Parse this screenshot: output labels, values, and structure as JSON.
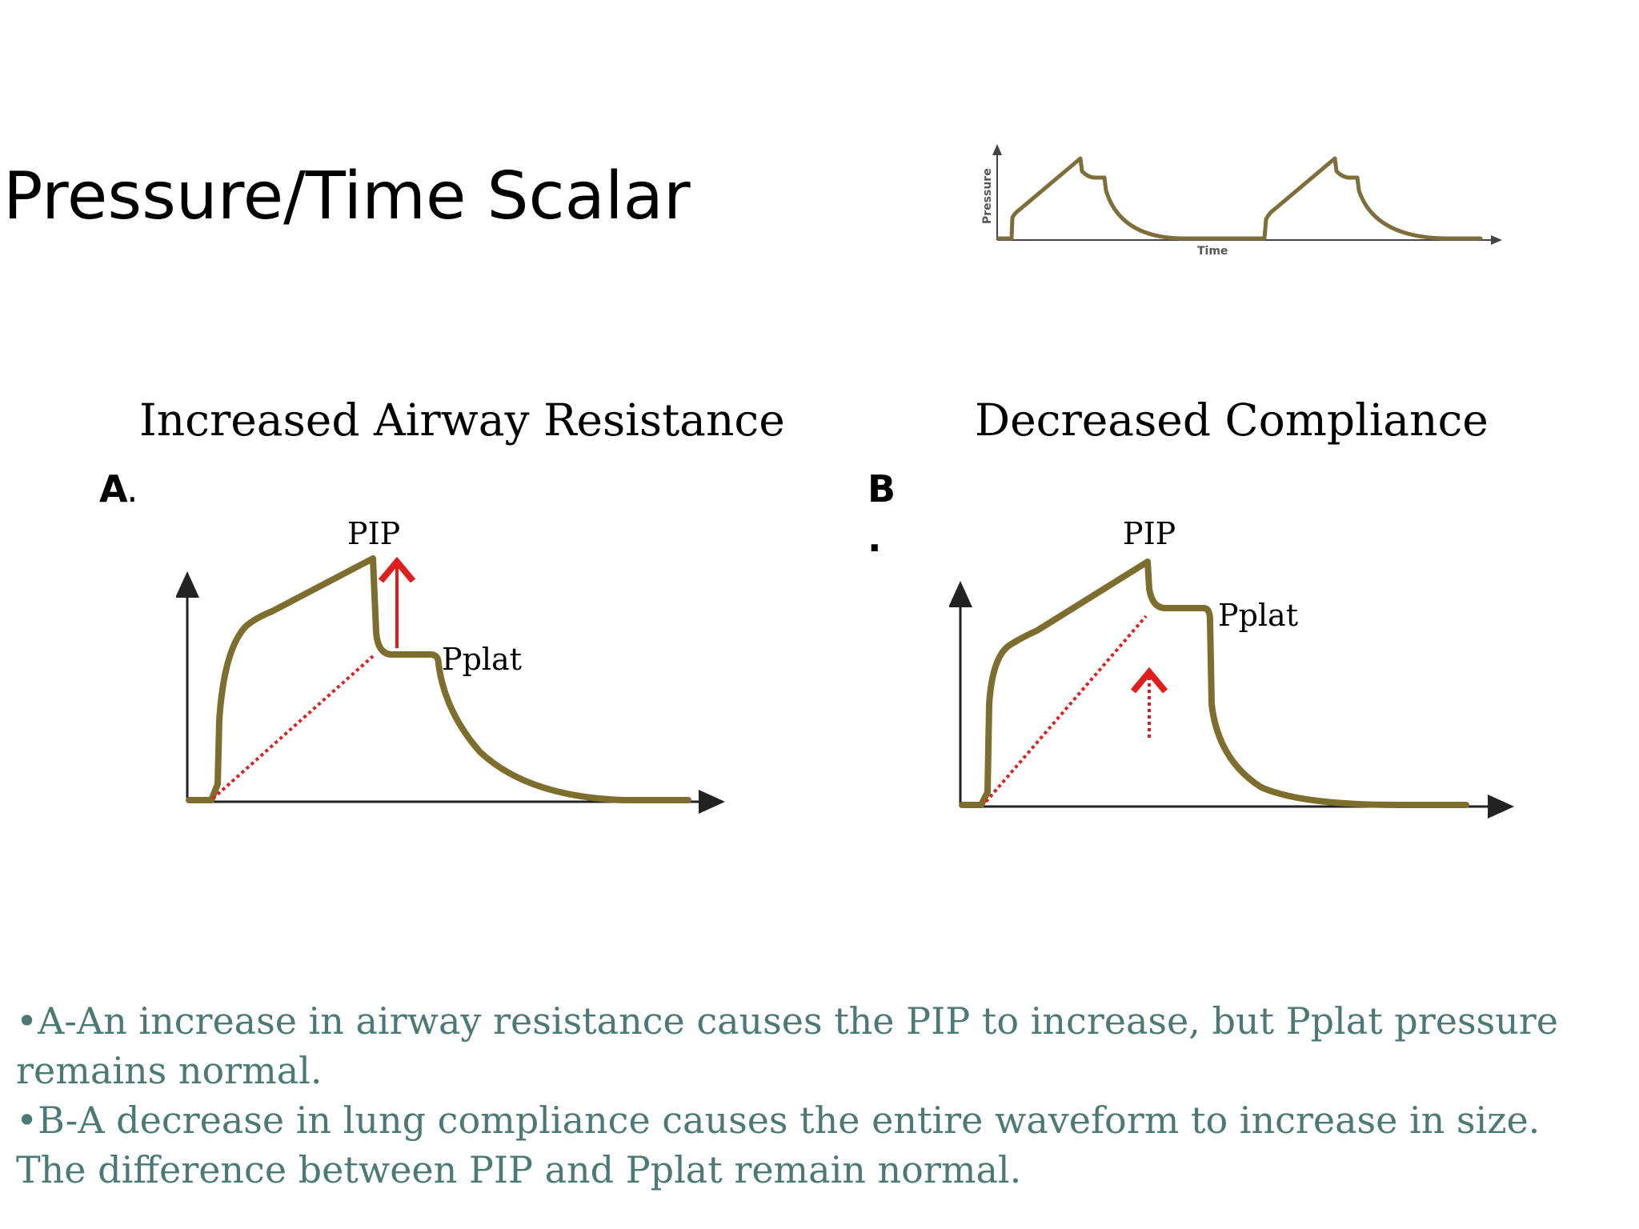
{
  "title": "Pressure/Time Scalar",
  "mini_chart": {
    "y_label": "Pressure",
    "x_label": "Time",
    "line_color": "#7d6e3a"
  },
  "panel_a": {
    "heading": "Increased Airway Resistance",
    "letter": "A",
    "letter_suffix": ".",
    "pip_label": "PIP",
    "pplat_label": "Pplat"
  },
  "panel_b": {
    "heading": "Decreased Compliance",
    "letter": "B",
    "letter_suffix": ".",
    "pip_label": "PIP",
    "pplat_label": "Pplat"
  },
  "colors": {
    "waveform": "#7d6e2e",
    "arrow": "#e01e1e",
    "notes_text": "#4b7a74"
  },
  "notes": {
    "line_a": "•A-An increase in airway resistance causes the PIP to increase, but Pplat pressure remains normal.",
    "line_b": "•B-A decrease in lung compliance causes the entire waveform to increase in size. The difference between PIP and Pplat remain  normal."
  }
}
